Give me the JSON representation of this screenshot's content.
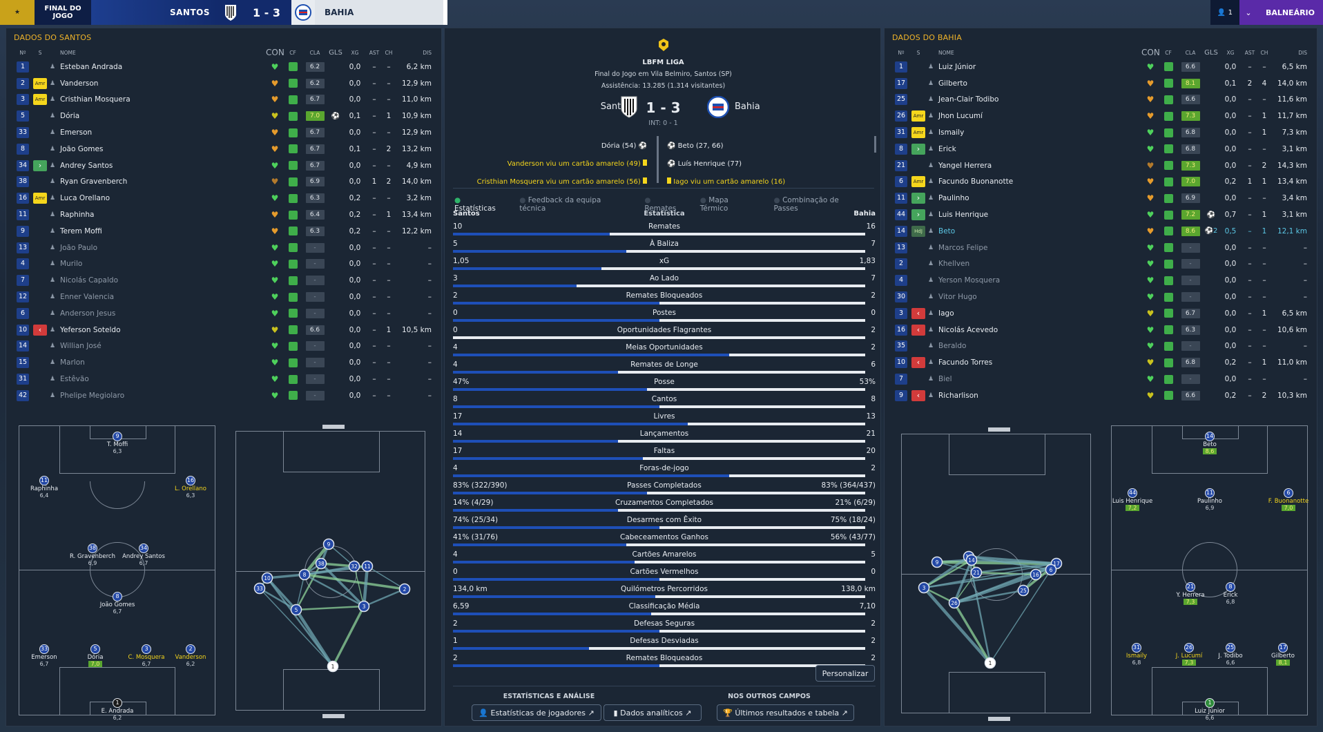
{
  "topbar": {
    "status": "FINAL DO JOGO",
    "home": "SANTOS",
    "score": "1 - 3",
    "away": "BAHIA",
    "user_count": "1",
    "club": "BALNEÁRIO"
  },
  "columns": {
    "no": "Nº",
    "s": "S",
    "name": "NOME",
    "con": "CON",
    "cf": "CF",
    "cla": "CLA",
    "gls": "GLS",
    "xg": "XG",
    "ast": "AST",
    "ch": "CH",
    "dis": "DIS"
  },
  "left_panel": {
    "title": "DADOS DO SANTOS",
    "players": [
      {
        "no": "1",
        "sub": "",
        "name": "Esteban Andrada",
        "con": "green",
        "cla": "6.2",
        "gls": "",
        "xg": "0,0",
        "ast": "–",
        "ch": "–",
        "dis": "6,2 km"
      },
      {
        "no": "2",
        "sub": "Amr",
        "name": "Vanderson",
        "con": "orange",
        "cla": "6.2",
        "gls": "",
        "xg": "0,0",
        "ast": "–",
        "ch": "–",
        "dis": "12,9 km"
      },
      {
        "no": "3",
        "sub": "Amr",
        "name": "Cristhian Mosquera",
        "con": "orange",
        "cla": "6.7",
        "gls": "",
        "xg": "0,0",
        "ast": "–",
        "ch": "–",
        "dis": "11,0 km"
      },
      {
        "no": "5",
        "sub": "",
        "name": "Dória",
        "con": "yellow",
        "cla": "7.0",
        "clag": true,
        "gls": "⚽",
        "xg": "0,1",
        "ast": "–",
        "ch": "1",
        "dis": "10,9 km"
      },
      {
        "no": "33",
        "sub": "",
        "name": "Emerson",
        "con": "orange",
        "cla": "6.7",
        "gls": "",
        "xg": "0,0",
        "ast": "–",
        "ch": "–",
        "dis": "12,9 km"
      },
      {
        "no": "8",
        "sub": "",
        "name": "João Gomes",
        "con": "orange",
        "cla": "6.7",
        "gls": "",
        "xg": "0,1",
        "ast": "–",
        "ch": "2",
        "dis": "13,2 km"
      },
      {
        "no": "34",
        "sub": "in",
        "name": "Andrey Santos",
        "con": "green",
        "cla": "6.7",
        "gls": "",
        "xg": "0,0",
        "ast": "–",
        "ch": "–",
        "dis": "4,9 km"
      },
      {
        "no": "38",
        "sub": "",
        "name": "Ryan Gravenberch",
        "con": "brown",
        "cla": "6.9",
        "gls": "",
        "xg": "0,0",
        "ast": "1",
        "ch": "2",
        "dis": "14,0 km"
      },
      {
        "no": "16",
        "sub": "Amr",
        "name": "Luca Orellano",
        "con": "green",
        "cla": "6.3",
        "gls": "",
        "xg": "0,2",
        "ast": "–",
        "ch": "–",
        "dis": "3,2 km"
      },
      {
        "no": "11",
        "sub": "",
        "name": "Raphinha",
        "con": "orange",
        "cla": "6.4",
        "gls": "",
        "xg": "0,2",
        "ast": "–",
        "ch": "1",
        "dis": "13,4 km"
      },
      {
        "no": "9",
        "sub": "",
        "name": "Terem Moffi",
        "con": "orange",
        "cla": "6.3",
        "gls": "",
        "xg": "0,2",
        "ast": "–",
        "ch": "–",
        "dis": "12,2 km"
      },
      {
        "no": "13",
        "sub": "",
        "name": "João Paulo",
        "con": "green",
        "cla": "-",
        "gls": "",
        "xg": "0,0",
        "ast": "–",
        "ch": "–",
        "dis": "–",
        "dim": true
      },
      {
        "no": "4",
        "sub": "",
        "name": "Murilo",
        "con": "green",
        "cla": "-",
        "gls": "",
        "xg": "0,0",
        "ast": "–",
        "ch": "–",
        "dis": "–",
        "dim": true
      },
      {
        "no": "7",
        "sub": "",
        "name": "Nicolás Capaldo",
        "con": "green",
        "cla": "-",
        "gls": "",
        "xg": "0,0",
        "ast": "–",
        "ch": "–",
        "dis": "–",
        "dim": true
      },
      {
        "no": "12",
        "sub": "",
        "name": "Enner Valencia",
        "con": "green",
        "cla": "-",
        "gls": "",
        "xg": "0,0",
        "ast": "–",
        "ch": "–",
        "dis": "–",
        "dim": true
      },
      {
        "no": "6",
        "sub": "",
        "name": "Anderson Jesus",
        "con": "green",
        "cla": "-",
        "gls": "",
        "xg": "0,0",
        "ast": "–",
        "ch": "–",
        "dis": "–",
        "dim": true
      },
      {
        "no": "10",
        "sub": "out",
        "name": "Yeferson Soteldo",
        "con": "yellow",
        "cla": "6.6",
        "gls": "",
        "xg": "0,0",
        "ast": "–",
        "ch": "1",
        "dis": "10,5 km"
      },
      {
        "no": "14",
        "sub": "",
        "name": "Willian José",
        "con": "green",
        "cla": "-",
        "gls": "",
        "xg": "0,0",
        "ast": "–",
        "ch": "–",
        "dis": "–",
        "dim": true
      },
      {
        "no": "15",
        "sub": "",
        "name": "Marlon",
        "con": "green",
        "cla": "-",
        "gls": "",
        "xg": "0,0",
        "ast": "–",
        "ch": "–",
        "dis": "–",
        "dim": true
      },
      {
        "no": "31",
        "sub": "",
        "name": "Estêvão",
        "con": "green",
        "cla": "-",
        "gls": "",
        "xg": "0,0",
        "ast": "–",
        "ch": "–",
        "dis": "–",
        "dim": true
      },
      {
        "no": "42",
        "sub": "",
        "name": "Phelipe Megiolaro",
        "con": "green",
        "cla": "-",
        "gls": "",
        "xg": "0,0",
        "ast": "–",
        "ch": "–",
        "dis": "–",
        "dim": true
      }
    ],
    "formation": [
      {
        "no": "9",
        "name": "T. Moffi",
        "rat": "6,3"
      },
      {
        "no": "11",
        "name": "Raphinha",
        "rat": "6,4"
      },
      {
        "no": "16",
        "name": "L. Orellano",
        "rat": "6,3",
        "yel": true
      },
      {
        "no": "38",
        "name": "R. Gravenberch",
        "rat": "6,9"
      },
      {
        "no": "34",
        "name": "Andrey Santos",
        "rat": "6,7"
      },
      {
        "no": "8",
        "name": "João Gomes",
        "rat": "6,7"
      },
      {
        "no": "33",
        "name": "Emerson",
        "rat": "6,7"
      },
      {
        "no": "5",
        "name": "Dória",
        "rat": "7,0",
        "g": true
      },
      {
        "no": "3",
        "name": "C. Mosquera",
        "rat": "6,7",
        "yel": true
      },
      {
        "no": "2",
        "name": "Vanderson",
        "rat": "6,2",
        "yel": true
      },
      {
        "no": "1",
        "name": "E. Andrada",
        "rat": "6,2"
      }
    ],
    "network": [
      "9",
      "10",
      "38",
      "8",
      "32",
      "11",
      "33",
      "5",
      "3",
      "2",
      "1"
    ]
  },
  "right_panel": {
    "title": "DADOS DO BAHIA",
    "players": [
      {
        "no": "1",
        "sub": "",
        "name": "Luiz Júnior",
        "con": "green",
        "cla": "6.6",
        "gls": "",
        "xg": "0,0",
        "ast": "–",
        "ch": "–",
        "dis": "6,5 km"
      },
      {
        "no": "17",
        "sub": "",
        "name": "Gilberto",
        "con": "orange",
        "cla": "8.1",
        "clag": true,
        "gls": "",
        "xg": "0,1",
        "ast": "2",
        "ch": "4",
        "dis": "14,0 km"
      },
      {
        "no": "25",
        "sub": "",
        "name": "Jean-Clair Todibo",
        "con": "orange",
        "cla": "6.6",
        "gls": "",
        "xg": "0,0",
        "ast": "–",
        "ch": "–",
        "dis": "11,6 km"
      },
      {
        "no": "26",
        "sub": "Amr",
        "name": "Jhon Lucumí",
        "con": "orange",
        "cla": "7.3",
        "clag": true,
        "gls": "",
        "xg": "0,0",
        "ast": "–",
        "ch": "1",
        "dis": "11,7 km"
      },
      {
        "no": "31",
        "sub": "Amr",
        "name": "Ismaily",
        "con": "green",
        "cla": "6.8",
        "gls": "",
        "xg": "0,0",
        "ast": "–",
        "ch": "1",
        "dis": "7,3 km"
      },
      {
        "no": "8",
        "sub": "in",
        "name": "Erick",
        "con": "green",
        "cla": "6.8",
        "gls": "",
        "xg": "0,0",
        "ast": "–",
        "ch": "–",
        "dis": "3,1 km"
      },
      {
        "no": "21",
        "sub": "",
        "name": "Yangel Herrera",
        "con": "brown",
        "cla": "7.3",
        "clag": true,
        "gls": "",
        "xg": "0,0",
        "ast": "–",
        "ch": "2",
        "dis": "14,3 km"
      },
      {
        "no": "6",
        "sub": "Amr",
        "name": "Facundo Buonanotte",
        "con": "orange",
        "cla": "7.0",
        "clag": true,
        "gls": "",
        "xg": "0,2",
        "ast": "1",
        "ch": "1",
        "dis": "13,4 km"
      },
      {
        "no": "11",
        "sub": "in",
        "name": "Paulinho",
        "con": "orange",
        "cla": "6.9",
        "gls": "",
        "xg": "0,0",
        "ast": "–",
        "ch": "–",
        "dis": "3,4 km"
      },
      {
        "no": "44",
        "sub": "in",
        "name": "Luis Henrique",
        "con": "green",
        "cla": "7.2",
        "clag": true,
        "gls": "⚽",
        "xg": "0,7",
        "ast": "–",
        "ch": "1",
        "dis": "3,1 km"
      },
      {
        "no": "14",
        "sub": "HdJ",
        "name": "Beto",
        "con": "orange",
        "cla": "8.6",
        "clag": true,
        "gls": "⚽2",
        "xg": "0,5",
        "ast": "–",
        "ch": "1",
        "dis": "12,1 km",
        "hl": true
      },
      {
        "no": "13",
        "sub": "",
        "name": "Marcos Felipe",
        "con": "green",
        "cla": "-",
        "gls": "",
        "xg": "0,0",
        "ast": "–",
        "ch": "–",
        "dis": "–",
        "dim": true
      },
      {
        "no": "2",
        "sub": "",
        "name": "Khellven",
        "con": "green",
        "cla": "-",
        "gls": "",
        "xg": "0,0",
        "ast": "–",
        "ch": "–",
        "dis": "–",
        "dim": true
      },
      {
        "no": "4",
        "sub": "",
        "name": "Yerson Mosquera",
        "con": "green",
        "cla": "-",
        "gls": "",
        "xg": "0,0",
        "ast": "–",
        "ch": "–",
        "dis": "–",
        "dim": true
      },
      {
        "no": "30",
        "sub": "",
        "name": "Vitor Hugo",
        "con": "green",
        "cla": "-",
        "gls": "",
        "xg": "0,0",
        "ast": "–",
        "ch": "–",
        "dis": "–",
        "dim": true
      },
      {
        "no": "3",
        "sub": "out",
        "name": "Iago",
        "con": "yellow",
        "cla": "6.7",
        "gls": "",
        "xg": "0,0",
        "ast": "–",
        "ch": "1",
        "dis": "6,5 km"
      },
      {
        "no": "16",
        "sub": "out",
        "name": "Nicolás Acevedo",
        "con": "green",
        "cla": "6.3",
        "gls": "",
        "xg": "0,0",
        "ast": "–",
        "ch": "–",
        "dis": "10,6 km"
      },
      {
        "no": "35",
        "sub": "",
        "name": "Beraldo",
        "con": "green",
        "cla": "-",
        "gls": "",
        "xg": "0,0",
        "ast": "–",
        "ch": "–",
        "dis": "–",
        "dim": true
      },
      {
        "no": "10",
        "sub": "out",
        "name": "Facundo Torres",
        "con": "yellow",
        "cla": "6.8",
        "gls": "",
        "xg": "0,2",
        "ast": "–",
        "ch": "1",
        "dis": "11,0 km"
      },
      {
        "no": "7",
        "sub": "",
        "name": "Biel",
        "con": "green",
        "cla": "-",
        "gls": "",
        "xg": "0,0",
        "ast": "–",
        "ch": "–",
        "dis": "–",
        "dim": true
      },
      {
        "no": "9",
        "sub": "out",
        "name": "Richarlison",
        "con": "yellow",
        "cla": "6.6",
        "gls": "",
        "xg": "0,2",
        "ast": "–",
        "ch": "2",
        "dis": "10,3 km"
      }
    ],
    "formation": [
      {
        "no": "14",
        "name": "Beto",
        "rat": "8,6",
        "g": true
      },
      {
        "no": "44",
        "name": "Luis Henrique",
        "rat": "7,2",
        "g": true
      },
      {
        "no": "11",
        "name": "Paulinho",
        "rat": "6,9"
      },
      {
        "no": "6",
        "name": "F. Buonanotte",
        "rat": "7,0",
        "g": true,
        "yel": true
      },
      {
        "no": "21",
        "name": "Y. Herrera",
        "rat": "7,3",
        "g": true
      },
      {
        "no": "8",
        "name": "Erick",
        "rat": "6,8"
      },
      {
        "no": "31",
        "name": "Ismaily",
        "rat": "6,8",
        "yel": true
      },
      {
        "no": "26",
        "name": "J. Lucumí",
        "rat": "7,3",
        "g": true,
        "yel": true
      },
      {
        "no": "25",
        "name": "J. Todibo",
        "rat": "6,6"
      },
      {
        "no": "17",
        "name": "Gilberto",
        "rat": "8,1",
        "g": true
      },
      {
        "no": "1",
        "name": "Luiz Júnior",
        "rat": "6,6"
      }
    ],
    "network": [
      "9",
      "10",
      "14",
      "17",
      "21",
      "16",
      "6",
      "3",
      "26",
      "25",
      "1"
    ]
  },
  "match": {
    "competition": "LBFM LIGA",
    "venue": "Final do Jogo em Vila Belmiro, Santos (SP)",
    "attendance": "Assistência: 13.285 (1.314 visitantes)",
    "home": "Santos",
    "away": "Bahia",
    "score": "1 - 3",
    "ht": "INT: 0 - 1",
    "events_home": [
      "Dória (54)",
      "Vanderson viu um cartão amarelo (49)",
      "Cristhian Mosquera viu um cartão amarelo (56)"
    ],
    "events_away": [
      "Beto (27, 66)",
      "Luís Henrique (77)",
      "Iago viu um cartão amarelo (16)"
    ],
    "tabs": [
      "Estatísticas",
      "Feedback da equipa técnica",
      "Remates",
      "Mapa Térmico",
      "Combinação de Passes"
    ],
    "stats_header": {
      "home": "Santos",
      "mid": "Estatística",
      "away": "Bahia"
    },
    "stats": [
      {
        "l": "10",
        "m": "Remates",
        "r": "16",
        "p": 0.38
      },
      {
        "l": "5",
        "m": "À Baliza",
        "r": "7",
        "p": 0.42
      },
      {
        "l": "1,05",
        "m": "xG",
        "r": "1,83",
        "p": 0.36
      },
      {
        "l": "3",
        "m": "Ao Lado",
        "r": "7",
        "p": 0.3
      },
      {
        "l": "2",
        "m": "Remates Bloqueados",
        "r": "2",
        "p": 0.5
      },
      {
        "l": "0",
        "m": "Postes",
        "r": "0",
        "p": 0.5
      },
      {
        "l": "0",
        "m": "Oportunidades Flagrantes",
        "r": "2",
        "p": 0.0
      },
      {
        "l": "4",
        "m": "Meias Oportunidades",
        "r": "2",
        "p": 0.67
      },
      {
        "l": "4",
        "m": "Remates de Longe",
        "r": "6",
        "p": 0.4
      },
      {
        "l": "47%",
        "m": "Posse",
        "r": "53%",
        "p": 0.47
      },
      {
        "l": "8",
        "m": "Cantos",
        "r": "8",
        "p": 0.5
      },
      {
        "l": "17",
        "m": "Livres",
        "r": "13",
        "p": 0.57
      },
      {
        "l": "14",
        "m": "Lançamentos",
        "r": "21",
        "p": 0.4
      },
      {
        "l": "17",
        "m": "Faltas",
        "r": "20",
        "p": 0.46
      },
      {
        "l": "4",
        "m": "Foras-de-jogo",
        "r": "2",
        "p": 0.67
      },
      {
        "l": "83% (322/390)",
        "m": "Passes Completados",
        "r": "83% (364/437)",
        "p": 0.47
      },
      {
        "l": "14% (4/29)",
        "m": "Cruzamentos Completados",
        "r": "21% (6/29)",
        "p": 0.4
      },
      {
        "l": "74% (25/34)",
        "m": "Desarmes com Êxito",
        "r": "75% (18/24)",
        "p": 0.5
      },
      {
        "l": "41% (31/76)",
        "m": "Cabeceamentos Ganhos",
        "r": "56% (43/77)",
        "p": 0.42
      },
      {
        "l": "4",
        "m": "Cartões Amarelos",
        "r": "5",
        "p": 0.44
      },
      {
        "l": "0",
        "m": "Cartões Vermelhos",
        "r": "0",
        "p": 0.5
      },
      {
        "l": "134,0 km",
        "m": "Quilómetros Percorridos",
        "r": "138,0 km",
        "p": 0.49
      },
      {
        "l": "6,59",
        "m": "Classificação Média",
        "r": "7,10",
        "p": 0.48
      },
      {
        "l": "2",
        "m": "Defesas Seguras",
        "r": "2",
        "p": 0.5
      },
      {
        "l": "1",
        "m": "Defesas Desviadas",
        "r": "2",
        "p": 0.33
      },
      {
        "l": "2",
        "m": "Remates Bloqueados",
        "r": "2",
        "p": 0.5
      }
    ],
    "customize": "Personalizar",
    "section_stats": "ESTATÍSTICAS E ANÁLISE",
    "section_other": "NOS OUTROS CAMPOS",
    "btn_players": "Estatísticas de jogadores",
    "btn_analytics": "Dados analíticos",
    "btn_results": "Últimos resultados e tabela"
  }
}
